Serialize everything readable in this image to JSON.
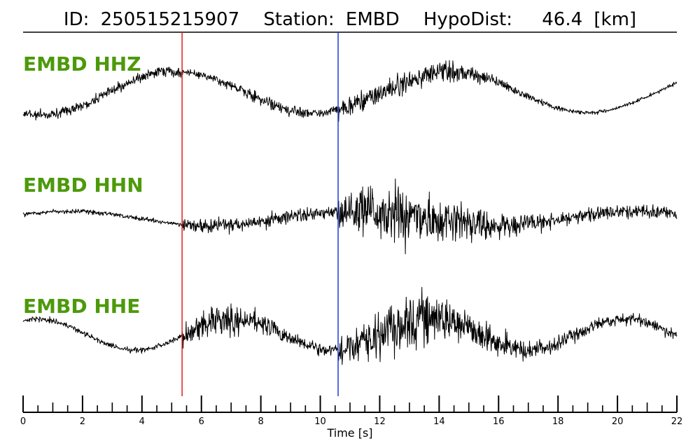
{
  "header": {
    "id_label": "ID:",
    "id_value": "250515215907",
    "station_label": "Station:",
    "station_value": "EMBD",
    "dist_label": "HypoDist:",
    "dist_value": "46.4",
    "dist_unit": "[km]"
  },
  "colors": {
    "trace": "#000000",
    "channel_label": "#4c9a0b",
    "p_pick": "#e41a1c",
    "s_pick": "#1f3bd6"
  },
  "chart_data": {
    "type": "line",
    "xlabel": "Time [s]",
    "xlim": [
      0,
      22
    ],
    "x_ticks": [
      0,
      2,
      4,
      6,
      8,
      10,
      12,
      14,
      16,
      18,
      20,
      22
    ],
    "minor_tick_step": 0.5,
    "grid": false,
    "picks": [
      {
        "phase": "P",
        "time": 5.35
      },
      {
        "phase": "S",
        "time": 10.6
      }
    ],
    "series": [
      {
        "name": "EMBD HHZ"
      },
      {
        "name": "EMBD HHN"
      },
      {
        "name": "EMBD HHE"
      }
    ]
  }
}
